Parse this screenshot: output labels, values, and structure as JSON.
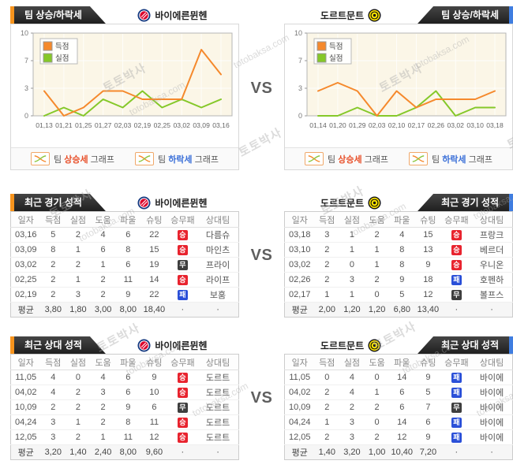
{
  "vs_label": "VS",
  "watermark": {
    "text_ko": "토토박사",
    "text_en": "totobaksa.com"
  },
  "teams": {
    "home": {
      "name": "바이에른뮌헨"
    },
    "away": {
      "name": "도르트문트"
    }
  },
  "sections": {
    "trend": {
      "title": "팀 상승/하락세",
      "footer": [
        {
          "prefix": "팀 ",
          "colored": "상승세",
          "suffix": " 그래프"
        },
        {
          "prefix": "팀 ",
          "colored": "하락세",
          "suffix": " 그래프"
        }
      ]
    },
    "recent": {
      "title": "최근 경기 성적"
    },
    "h2h": {
      "title": "최근 상대 성적"
    }
  },
  "colors": {
    "scored_line": "#f5892c",
    "conceded_line": "#85c829",
    "plot_bg": "#fbf6e7",
    "accent_home": "#f7941d",
    "accent_away": "#3f7de0",
    "win_badge": "#e8232e",
    "draw_badge": "#3e3e3e",
    "loss_badge": "#2b50d8"
  },
  "chart_data": [
    {
      "type": "line",
      "team": "바이에른뮌헨",
      "x": [
        "01,13",
        "01,21",
        "01,25",
        "01,27",
        "02,03",
        "02,19",
        "02,25",
        "03,02",
        "03,09",
        "03,16"
      ],
      "series": [
        {
          "name": "득점",
          "color": "#f5892c",
          "values": [
            3,
            0,
            1,
            3,
            3,
            2,
            2,
            2,
            8,
            5
          ]
        },
        {
          "name": "실점",
          "color": "#85c829",
          "values": [
            0,
            1,
            0,
            2,
            1,
            3,
            1,
            2,
            1,
            2
          ]
        }
      ],
      "ylim": [
        0,
        10
      ],
      "yticks": [
        {
          "v": 0,
          "label": "0"
        },
        {
          "v": 3.333,
          "label": "3"
        },
        {
          "v": 6.667,
          "label": "7"
        },
        {
          "v": 10,
          "label": "10"
        }
      ],
      "grid": true,
      "legend_position": "top-left"
    },
    {
      "type": "line",
      "team": "도르트문트",
      "x": [
        "01,14",
        "01,20",
        "01,29",
        "02,03",
        "02,10",
        "02,17",
        "02,26",
        "03,02",
        "03,10",
        "03,18"
      ],
      "series": [
        {
          "name": "득점",
          "color": "#f5892c",
          "values": [
            3,
            4,
            3,
            0,
            3,
            1,
            2,
            2,
            2,
            3
          ]
        },
        {
          "name": "실점",
          "color": "#85c829",
          "values": [
            0,
            0,
            1,
            0,
            0,
            1,
            3,
            0,
            1,
            1
          ]
        }
      ],
      "ylim": [
        0,
        10
      ],
      "yticks": [
        {
          "v": 0,
          "label": "0"
        },
        {
          "v": 3.333,
          "label": "3"
        },
        {
          "v": 6.667,
          "label": "7"
        },
        {
          "v": 10,
          "label": "10"
        }
      ],
      "grid": true,
      "legend_position": "top-left"
    }
  ],
  "tables": {
    "columns": [
      "일자",
      "득점",
      "실점",
      "도움",
      "파울",
      "슈팅",
      "승무패",
      "상대팀"
    ],
    "avg_label": "평균",
    "dot": "·",
    "recent_home": {
      "rows": [
        {
          "date": "03,16",
          "vals": [
            5,
            2,
            4,
            6,
            22
          ],
          "result": {
            "text": "승",
            "type": "win"
          },
          "opp": "다름슈"
        },
        {
          "date": "03,09",
          "vals": [
            8,
            1,
            6,
            8,
            15
          ],
          "result": {
            "text": "승",
            "type": "win"
          },
          "opp": "마인츠"
        },
        {
          "date": "03,02",
          "vals": [
            2,
            2,
            1,
            6,
            19
          ],
          "result": {
            "text": "무",
            "type": "draw"
          },
          "opp": "프라이"
        },
        {
          "date": "02,25",
          "vals": [
            2,
            1,
            2,
            11,
            14
          ],
          "result": {
            "text": "승",
            "type": "win"
          },
          "opp": "라이프"
        },
        {
          "date": "02,19",
          "vals": [
            2,
            3,
            2,
            9,
            22
          ],
          "result": {
            "text": "패",
            "type": "loss"
          },
          "opp": "보훔"
        }
      ],
      "avg": [
        "3,80",
        "1,80",
        "3,00",
        "8,00",
        "18,40"
      ]
    },
    "recent_away": {
      "rows": [
        {
          "date": "03,18",
          "vals": [
            3,
            1,
            2,
            4,
            15
          ],
          "result": {
            "text": "승",
            "type": "win"
          },
          "opp": "프랑크"
        },
        {
          "date": "03,10",
          "vals": [
            2,
            1,
            1,
            8,
            13
          ],
          "result": {
            "text": "승",
            "type": "win"
          },
          "opp": "베르더"
        },
        {
          "date": "03,02",
          "vals": [
            2,
            0,
            1,
            8,
            9
          ],
          "result": {
            "text": "승",
            "type": "win"
          },
          "opp": "우니온"
        },
        {
          "date": "02,26",
          "vals": [
            2,
            3,
            2,
            9,
            18
          ],
          "result": {
            "text": "패",
            "type": "loss"
          },
          "opp": "호펜하"
        },
        {
          "date": "02,17",
          "vals": [
            1,
            1,
            0,
            5,
            12
          ],
          "result": {
            "text": "무",
            "type": "draw"
          },
          "opp": "볼프스"
        }
      ],
      "avg": [
        "2,00",
        "1,20",
        "1,20",
        "6,80",
        "13,40"
      ]
    },
    "h2h_home": {
      "rows": [
        {
          "date": "11,05",
          "vals": [
            4,
            0,
            4,
            6,
            9
          ],
          "result": {
            "text": "승",
            "type": "win"
          },
          "opp": "도르트"
        },
        {
          "date": "04,02",
          "vals": [
            4,
            2,
            3,
            6,
            10
          ],
          "result": {
            "text": "승",
            "type": "win"
          },
          "opp": "도르트"
        },
        {
          "date": "10,09",
          "vals": [
            2,
            2,
            2,
            9,
            6
          ],
          "result": {
            "text": "무",
            "type": "draw"
          },
          "opp": "도르트"
        },
        {
          "date": "04,24",
          "vals": [
            3,
            1,
            2,
            8,
            11
          ],
          "result": {
            "text": "승",
            "type": "win"
          },
          "opp": "도르트"
        },
        {
          "date": "12,05",
          "vals": [
            3,
            2,
            1,
            11,
            12
          ],
          "result": {
            "text": "승",
            "type": "win"
          },
          "opp": "도르트"
        }
      ],
      "avg": [
        "3,20",
        "1,40",
        "2,40",
        "8,00",
        "9,60"
      ]
    },
    "h2h_away": {
      "rows": [
        {
          "date": "11,05",
          "vals": [
            0,
            4,
            0,
            14,
            9
          ],
          "result": {
            "text": "패",
            "type": "loss"
          },
          "opp": "바이에"
        },
        {
          "date": "04,02",
          "vals": [
            2,
            4,
            1,
            6,
            5
          ],
          "result": {
            "text": "패",
            "type": "loss"
          },
          "opp": "바이에"
        },
        {
          "date": "10,09",
          "vals": [
            2,
            2,
            2,
            6,
            7
          ],
          "result": {
            "text": "무",
            "type": "draw"
          },
          "opp": "바이에"
        },
        {
          "date": "04,24",
          "vals": [
            1,
            3,
            0,
            14,
            6
          ],
          "result": {
            "text": "패",
            "type": "loss"
          },
          "opp": "바이에"
        },
        {
          "date": "12,05",
          "vals": [
            2,
            3,
            2,
            12,
            9
          ],
          "result": {
            "text": "패",
            "type": "loss"
          },
          "opp": "바이에"
        }
      ],
      "avg": [
        "1,40",
        "3,20",
        "1,00",
        "10,40",
        "7,20"
      ]
    }
  }
}
